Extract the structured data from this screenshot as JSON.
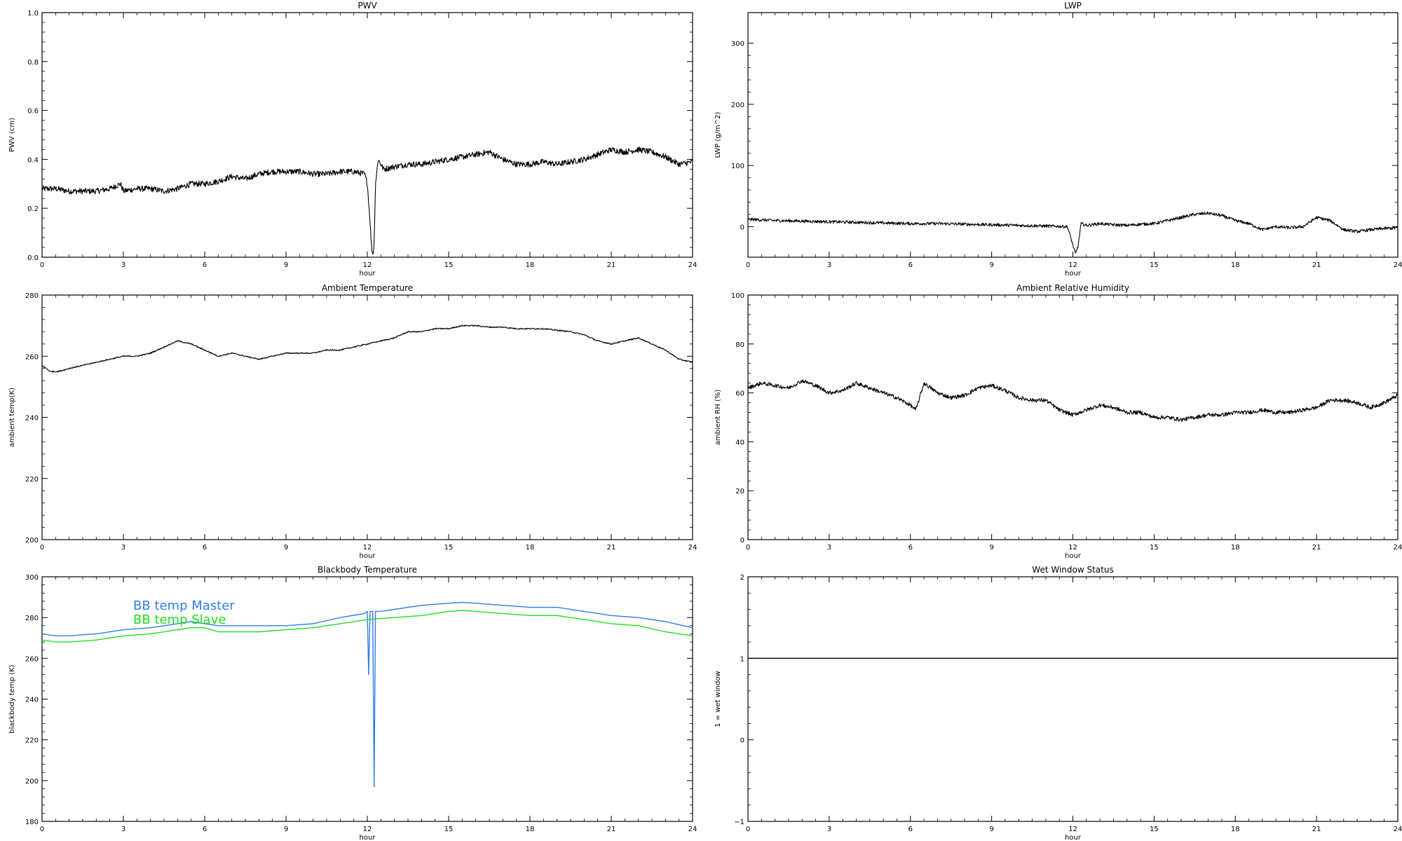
{
  "chart_data": [
    {
      "type": "line",
      "title": "PWV",
      "xlabel": "hour",
      "ylabel": "PWV (cm)",
      "xlim": [
        0,
        24
      ],
      "ylim": [
        0.0,
        1.0
      ],
      "xticks": [
        0,
        3,
        6,
        9,
        12,
        15,
        18,
        21,
        24
      ],
      "yticks": [
        0.0,
        0.2,
        0.4,
        0.6,
        0.8,
        1.0
      ],
      "ytick_labels": [
        "0.0",
        "0.2",
        "0.4",
        "0.6",
        "0.8",
        "1.0"
      ],
      "series": [
        {
          "color": "#000000",
          "noise": 0.012,
          "x": [
            0,
            0.5,
            1,
            1.5,
            2,
            2.5,
            2.9,
            3,
            3.5,
            4,
            4.5,
            5,
            5.5,
            6,
            6.5,
            7,
            7.5,
            8,
            8.5,
            9,
            9.5,
            10,
            10.5,
            11,
            11.5,
            11.9,
            12.0,
            12.1,
            12.15,
            12.2,
            12.25,
            12.3,
            12.4,
            12.6,
            13,
            13.5,
            14,
            14.5,
            15,
            15.5,
            16,
            16.5,
            17,
            17.5,
            18,
            18.5,
            19,
            19.5,
            20,
            20.5,
            21,
            21.5,
            22,
            22.5,
            23,
            23.5,
            24
          ],
          "y": [
            0.28,
            0.28,
            0.27,
            0.27,
            0.27,
            0.28,
            0.3,
            0.27,
            0.28,
            0.28,
            0.27,
            0.28,
            0.3,
            0.3,
            0.31,
            0.33,
            0.32,
            0.34,
            0.35,
            0.35,
            0.35,
            0.34,
            0.34,
            0.35,
            0.35,
            0.34,
            0.3,
            0.15,
            0.05,
            0.01,
            0.05,
            0.3,
            0.4,
            0.36,
            0.37,
            0.38,
            0.38,
            0.39,
            0.4,
            0.41,
            0.42,
            0.43,
            0.4,
            0.38,
            0.38,
            0.39,
            0.38,
            0.39,
            0.4,
            0.42,
            0.44,
            0.43,
            0.44,
            0.43,
            0.41,
            0.38,
            0.39
          ]
        }
      ]
    },
    {
      "type": "line",
      "title": "LWP",
      "xlabel": "hour",
      "ylabel": "LWP (g/m^2)",
      "xlim": [
        0,
        24
      ],
      "ylim": [
        -50,
        350
      ],
      "xticks": [
        0,
        3,
        6,
        9,
        12,
        15,
        18,
        21,
        24
      ],
      "yticks": [
        0,
        100,
        200,
        300
      ],
      "ytick_labels": [
        "0",
        "100",
        "200",
        "300"
      ],
      "series": [
        {
          "color": "#000000",
          "noise": 2.5,
          "x": [
            0,
            1,
            2,
            3,
            4,
            5,
            6,
            7,
            8,
            9,
            10,
            11,
            11.8,
            12.0,
            12.1,
            12.2,
            12.3,
            12.5,
            13,
            13.5,
            14,
            14.5,
            15,
            15.5,
            16,
            16.5,
            17,
            17.5,
            18,
            18.5,
            19,
            19.5,
            20,
            20.5,
            21,
            21.5,
            22,
            22.5,
            23,
            23.5,
            24
          ],
          "y": [
            12,
            10,
            9,
            8,
            7,
            6,
            5,
            5,
            4,
            3,
            2,
            1,
            0,
            -30,
            -45,
            -30,
            5,
            2,
            5,
            3,
            2,
            4,
            5,
            10,
            15,
            20,
            22,
            18,
            10,
            5,
            -5,
            0,
            -2,
            0,
            15,
            10,
            -5,
            -8,
            -5,
            -3,
            -2
          ]
        }
      ]
    },
    {
      "type": "line",
      "title": "Ambient Temperature",
      "xlabel": "hour",
      "ylabel": "ambient temp(K)",
      "xlim": [
        0,
        24
      ],
      "ylim": [
        200,
        280
      ],
      "xticks": [
        0,
        3,
        6,
        9,
        12,
        15,
        18,
        21,
        24
      ],
      "yticks": [
        200,
        220,
        240,
        260,
        280
      ],
      "ytick_labels": [
        "200",
        "220",
        "240",
        "260",
        "280"
      ],
      "series": [
        {
          "color": "#000000",
          "noise": 0.2,
          "x": [
            0,
            0.3,
            0.6,
            1,
            1.5,
            2,
            2.5,
            3,
            3.5,
            4,
            4.5,
            5,
            5.5,
            6,
            6.5,
            7,
            7.5,
            8,
            8.5,
            9,
            9.5,
            10,
            10.5,
            11,
            11.5,
            12,
            12.5,
            13,
            13.5,
            14,
            14.5,
            15,
            15.5,
            16,
            16.5,
            17,
            17.5,
            18,
            18.5,
            19,
            19.5,
            20,
            20.5,
            21,
            21.5,
            22,
            22.5,
            23,
            23.5,
            24
          ],
          "y": [
            257,
            255,
            255,
            256,
            257,
            258,
            259,
            260,
            260,
            261,
            263,
            265,
            264,
            262,
            260,
            261,
            260,
            259,
            260,
            261,
            261,
            261,
            262,
            262,
            263,
            264,
            265,
            266,
            268,
            268,
            269,
            269,
            270,
            270,
            269.5,
            269.5,
            269,
            269,
            269,
            268.5,
            268,
            267,
            265,
            264,
            265,
            266,
            264,
            262,
            259,
            258
          ]
        }
      ]
    },
    {
      "type": "line",
      "title": "Ambient Relative Humidity",
      "xlabel": "hour",
      "ylabel": "ambient RH (%)",
      "xlim": [
        0,
        24
      ],
      "ylim": [
        0,
        100
      ],
      "xticks": [
        0,
        3,
        6,
        9,
        12,
        15,
        18,
        21,
        24
      ],
      "yticks": [
        0,
        20,
        40,
        60,
        80,
        100
      ],
      "ytick_labels": [
        "0",
        "20",
        "40",
        "60",
        "80",
        "100"
      ],
      "series": [
        {
          "color": "#000000",
          "noise": 0.8,
          "x": [
            0,
            0.5,
            1,
            1.5,
            2,
            2.5,
            3,
            3.5,
            4,
            4.5,
            5,
            5.5,
            6,
            6.2,
            6.5,
            7,
            7.5,
            8,
            8.5,
            9,
            9.5,
            10,
            10.5,
            11,
            11.5,
            12,
            12.5,
            13,
            13.5,
            14,
            14.5,
            15,
            15.5,
            16,
            16.5,
            17,
            17.5,
            18,
            18.5,
            19,
            19.5,
            20,
            20.5,
            21,
            21.5,
            22,
            22.5,
            23,
            23.5,
            24
          ],
          "y": [
            62,
            64,
            63,
            62,
            65,
            63,
            60,
            61,
            64,
            62,
            60,
            58,
            55,
            53,
            64,
            60,
            58,
            59,
            62,
            63,
            61,
            58,
            57,
            57,
            53,
            51,
            53,
            55,
            54,
            52,
            52,
            50,
            50,
            49,
            50,
            51,
            51,
            52,
            52,
            53,
            52,
            52,
            53,
            54,
            57,
            57,
            56,
            54,
            56,
            59
          ]
        }
      ]
    },
    {
      "type": "line",
      "title": "Blackbody Temperature",
      "xlabel": "hour",
      "ylabel": "blackbody temp (K)",
      "xlim": [
        0,
        24
      ],
      "ylim": [
        180,
        300
      ],
      "xticks": [
        0,
        3,
        6,
        9,
        12,
        15,
        18,
        21,
        24
      ],
      "yticks": [
        180,
        200,
        220,
        240,
        260,
        280,
        300
      ],
      "ytick_labels": [
        "180",
        "200",
        "220",
        "240",
        "260",
        "280",
        "300"
      ],
      "legend_position": "top-left",
      "series": [
        {
          "name": "BB temp Master",
          "color": "#2f7de6",
          "noise": 0,
          "x": [
            0,
            0.5,
            1,
            2,
            3,
            4,
            5,
            5.5,
            6,
            6.5,
            7,
            8,
            9,
            10,
            11,
            11.9,
            12.0,
            12.05,
            12.1,
            12.15,
            12.2,
            12.25,
            12.3,
            12.35,
            12.4,
            12.5,
            13,
            14,
            15,
            15.5,
            16,
            17,
            18,
            19,
            20,
            21,
            22,
            23,
            24
          ],
          "y": [
            272,
            271,
            271,
            272,
            274,
            275,
            277,
            278,
            277,
            276,
            276,
            276,
            276,
            277,
            280,
            282,
            283,
            252,
            283,
            283,
            283,
            197,
            283,
            283,
            283,
            283,
            284,
            286,
            287,
            287.5,
            287,
            286,
            285,
            285,
            283,
            281,
            280,
            278,
            275
          ]
        },
        {
          "name": "BB temp Slave",
          "color": "#22dd22",
          "noise": 0,
          "x": [
            0,
            0.5,
            1,
            2,
            3,
            4,
            5,
            5.5,
            6,
            6.5,
            7,
            8,
            9,
            10,
            11,
            12,
            13,
            14,
            15,
            15.5,
            16,
            17,
            18,
            19,
            20,
            21,
            22,
            23,
            24
          ],
          "y": [
            269,
            268,
            268,
            269,
            271,
            272,
            274,
            275,
            275,
            273,
            273,
            273,
            274,
            275,
            277,
            279,
            280,
            281,
            283,
            283.5,
            283,
            282,
            281,
            281,
            279,
            277,
            276,
            273,
            271
          ]
        }
      ]
    },
    {
      "type": "line",
      "title": "Wet Window Status",
      "xlabel": "hour",
      "ylabel": "1 = wet window",
      "xlim": [
        0,
        24
      ],
      "ylim": [
        -1,
        2
      ],
      "xticks": [
        0,
        3,
        6,
        9,
        12,
        15,
        18,
        21,
        24
      ],
      "yticks": [
        -1,
        0,
        1,
        2
      ],
      "ytick_labels": [
        "−1",
        "0",
        "1",
        "2"
      ],
      "series": [
        {
          "color": "#000000",
          "noise": 0,
          "x": [
            0,
            24
          ],
          "y": [
            1,
            1
          ]
        }
      ]
    }
  ]
}
